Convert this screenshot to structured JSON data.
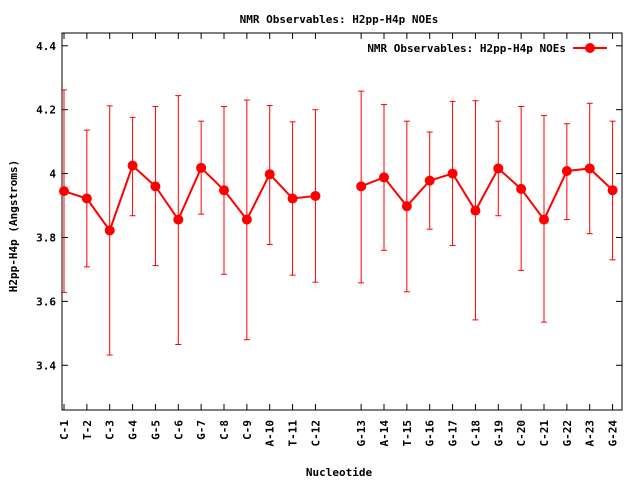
{
  "chart_data": {
    "type": "line",
    "title": "NMR Observables: H2pp-H4p NOEs",
    "xlabel": "Nucleotide",
    "ylabel": "H2pp-H4p (Angstroms)",
    "ylim": [
      3.26,
      4.44
    ],
    "yticks": [
      "3.4",
      "3.6",
      "3.8",
      "4",
      "4.2",
      "4.4"
    ],
    "ytick_values": [
      3.4,
      3.6,
      3.8,
      4.0,
      4.2,
      4.4
    ],
    "grid": false,
    "legend_position": "top-right",
    "series": [
      {
        "name": "NMR Observables: H2pp-H4p NOEs",
        "color": "#ff0000",
        "segments": [
          {
            "categories": [
              "C-1",
              "T-2",
              "C-3",
              "G-4",
              "G-5",
              "C-6",
              "G-7",
              "C-8",
              "C-9",
              "A-10",
              "T-11",
              "C-12"
            ],
            "values": [
              3.945,
              3.922,
              3.822,
              4.025,
              3.96,
              3.856,
              4.018,
              3.948,
              3.856,
              3.998,
              3.922,
              3.93
            ],
            "err_low": [
              3.628,
              3.708,
              3.432,
              3.868,
              3.712,
              3.465,
              3.873,
              3.685,
              3.48,
              3.778,
              3.682,
              3.66
            ],
            "err_high": [
              4.262,
              4.136,
              4.212,
              4.176,
              4.21,
              4.244,
              4.164,
              4.21,
              4.23,
              4.213,
              4.162,
              4.2
            ]
          },
          {
            "categories": [
              "G-13",
              "A-14",
              "T-15",
              "G-16",
              "G-17",
              "C-18",
              "G-19",
              "C-20",
              "C-21",
              "G-22",
              "A-23",
              "G-24"
            ],
            "values": [
              3.96,
              3.988,
              3.898,
              3.978,
              4.0,
              3.884,
              4.016,
              3.952,
              3.856,
              4.008,
              4.016,
              3.948
            ],
            "err_low": [
              3.658,
              3.76,
              3.63,
              3.826,
              3.775,
              3.542,
              3.868,
              3.697,
              3.535,
              3.856,
              3.812,
              3.73
            ],
            "err_high": [
              4.258,
              4.216,
              4.164,
              4.13,
              4.226,
              4.228,
              4.164,
              4.21,
              4.182,
              4.156,
              4.22,
              4.164
            ]
          }
        ]
      }
    ]
  }
}
